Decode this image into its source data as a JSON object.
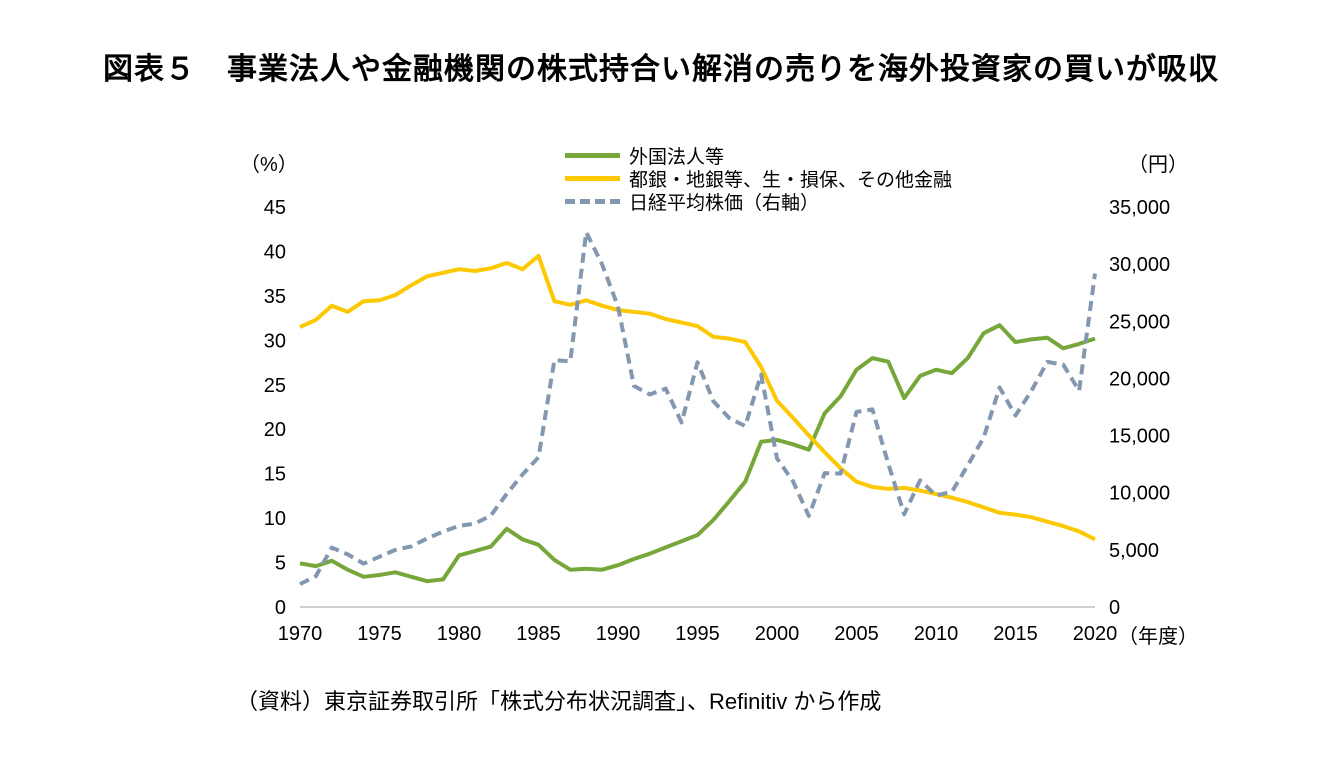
{
  "title": "図表５　事業法人や金融機関の株式持合い解消の売りを海外投資家の買いが吸収",
  "source": "（資料）東京証券取引所「株式分布状況調査」、Refinitiv から作成",
  "chart_data": {
    "type": "line",
    "x_label": "（年度）",
    "x_ticks": [
      1970,
      1975,
      1980,
      1985,
      1990,
      1995,
      2000,
      2005,
      2010,
      2015,
      2020
    ],
    "x": [
      1970,
      1971,
      1972,
      1973,
      1974,
      1975,
      1976,
      1977,
      1978,
      1979,
      1980,
      1981,
      1982,
      1983,
      1984,
      1985,
      1986,
      1987,
      1988,
      1989,
      1990,
      1991,
      1992,
      1993,
      1994,
      1995,
      1996,
      1997,
      1998,
      1999,
      2000,
      2001,
      2002,
      2003,
      2004,
      2005,
      2006,
      2007,
      2008,
      2009,
      2010,
      2011,
      2012,
      2013,
      2014,
      2015,
      2016,
      2017,
      2018,
      2019,
      2020
    ],
    "y_left": {
      "label": "（%）",
      "min": 0,
      "max": 45,
      "ticks": [
        0,
        5,
        10,
        15,
        20,
        25,
        30,
        35,
        40,
        45
      ]
    },
    "y_right": {
      "label": "（円）",
      "min": 0,
      "max": 35000,
      "ticks": [
        0,
        5000,
        10000,
        15000,
        20000,
        25000,
        30000,
        35000
      ]
    },
    "axis_color": "#BFBFBF",
    "series": [
      {
        "name": "外国法人等",
        "axis": "left",
        "color": "#77A63B",
        "style": "solid",
        "values": [
          4.9,
          4.6,
          5.2,
          4.2,
          3.4,
          3.6,
          3.9,
          3.4,
          2.9,
          3.1,
          5.8,
          6.3,
          6.8,
          8.8,
          7.6,
          7.0,
          5.3,
          4.2,
          4.3,
          4.2,
          4.7,
          5.4,
          6.0,
          6.7,
          7.4,
          8.1,
          9.8,
          11.9,
          14.1,
          18.6,
          18.8,
          18.3,
          17.7,
          21.8,
          23.7,
          26.7,
          28.0,
          27.6,
          23.5,
          26.0,
          26.7,
          26.3,
          28.0,
          30.8,
          31.7,
          29.8,
          30.1,
          30.3,
          29.1,
          29.6,
          30.2
        ]
      },
      {
        "name": "都銀・地銀等、生・損保、その他金融",
        "axis": "left",
        "color": "#FCC800",
        "style": "solid",
        "values": [
          31.5,
          32.3,
          33.9,
          33.2,
          34.4,
          34.5,
          35.1,
          36.2,
          37.2,
          37.6,
          38.0,
          37.8,
          38.1,
          38.7,
          38.0,
          39.5,
          34.4,
          34.0,
          34.5,
          33.9,
          33.4,
          33.2,
          33.0,
          32.4,
          32.0,
          31.6,
          30.4,
          30.2,
          29.8,
          27.0,
          23.2,
          21.3,
          19.3,
          17.4,
          15.6,
          14.1,
          13.5,
          13.3,
          13.4,
          13.1,
          12.7,
          12.3,
          11.8,
          11.2,
          10.6,
          10.4,
          10.1,
          9.6,
          9.1,
          8.5,
          7.6
        ]
      },
      {
        "name": "日経平均株価（右軸）",
        "axis": "right",
        "color": "#8497B0",
        "style": "dashed",
        "values": [
          2000,
          2700,
          5200,
          4600,
          3800,
          4400,
          5000,
          5300,
          6000,
          6600,
          7100,
          7300,
          8000,
          9900,
          11600,
          13100,
          21600,
          21500,
          32800,
          29980,
          26290,
          19350,
          18590,
          19110,
          16140,
          21410,
          18000,
          16530,
          15840,
          20340,
          13000,
          11020,
          7970,
          11715,
          11670,
          17060,
          17290,
          12530,
          8110,
          11090,
          9755,
          10080,
          12400,
          14830,
          19210,
          16760,
          18910,
          21450,
          21210,
          18920,
          29180
        ]
      }
    ]
  }
}
